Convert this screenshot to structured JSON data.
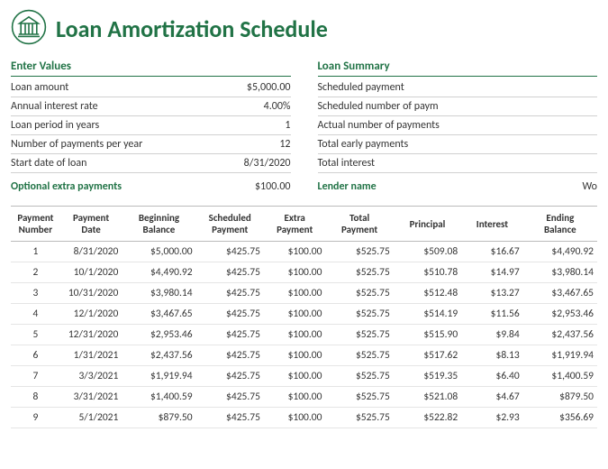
{
  "title": "Loan Amortization Schedule",
  "colors": {
    "accent": "#217346",
    "border": "#d0d0d0",
    "text": "#333333"
  },
  "enter_values": {
    "heading": "Enter Values",
    "rows": [
      {
        "label": "Loan amount",
        "value": "$5,000.00"
      },
      {
        "label": "Annual interest rate",
        "value": "4.00%"
      },
      {
        "label": "Loan period in years",
        "value": "1"
      },
      {
        "label": "Number of payments per year",
        "value": "12"
      },
      {
        "label": "Start date of loan",
        "value": "8/31/2020"
      }
    ],
    "extra_label": "Optional extra payments",
    "extra_value": "$100.00"
  },
  "loan_summary": {
    "heading": "Loan Summary",
    "rows": [
      {
        "label": "Scheduled payment",
        "value": ""
      },
      {
        "label": "Scheduled number of paym",
        "value": ""
      },
      {
        "label": "Actual number of payments",
        "value": ""
      },
      {
        "label": "Total early payments",
        "value": ""
      },
      {
        "label": "Total interest",
        "value": ""
      }
    ],
    "lender_label": "Lender name",
    "lender_value": "Wo"
  },
  "schedule": {
    "columns": [
      "Payment Number",
      "Payment Date",
      "Beginning Balance",
      "Scheduled Payment",
      "Extra Payment",
      "Total Payment",
      "Principal",
      "Interest",
      "Ending Balance"
    ],
    "col_widths": [
      "8%",
      "10%",
      "12%",
      "11%",
      "10%",
      "11%",
      "11%",
      "10%",
      "12%"
    ],
    "rows": [
      [
        "1",
        "8/31/2020",
        "$5,000.00",
        "$425.75",
        "$100.00",
        "$525.75",
        "$509.08",
        "$16.67",
        "$4,490.92"
      ],
      [
        "2",
        "10/1/2020",
        "$4,490.92",
        "$425.75",
        "$100.00",
        "$525.75",
        "$510.78",
        "$14.97",
        "$3,980.14"
      ],
      [
        "3",
        "10/31/2020",
        "$3,980.14",
        "$425.75",
        "$100.00",
        "$525.75",
        "$512.48",
        "$13.27",
        "$3,467.65"
      ],
      [
        "4",
        "12/1/2020",
        "$3,467.65",
        "$425.75",
        "$100.00",
        "$525.75",
        "$514.19",
        "$11.56",
        "$2,953.46"
      ],
      [
        "5",
        "12/31/2020",
        "$2,953.46",
        "$425.75",
        "$100.00",
        "$525.75",
        "$515.90",
        "$9.84",
        "$2,437.56"
      ],
      [
        "6",
        "1/31/2021",
        "$2,437.56",
        "$425.75",
        "$100.00",
        "$525.75",
        "$517.62",
        "$8.13",
        "$1,919.94"
      ],
      [
        "7",
        "3/3/2021",
        "$1,919.94",
        "$425.75",
        "$100.00",
        "$525.75",
        "$519.35",
        "$6.40",
        "$1,400.59"
      ],
      [
        "8",
        "3/31/2021",
        "$1,400.59",
        "$425.75",
        "$100.00",
        "$525.75",
        "$521.08",
        "$4.67",
        "$879.50"
      ],
      [
        "9",
        "5/1/2021",
        "$879.50",
        "$425.75",
        "$100.00",
        "$525.75",
        "$522.82",
        "$2.93",
        "$356.69"
      ]
    ]
  }
}
